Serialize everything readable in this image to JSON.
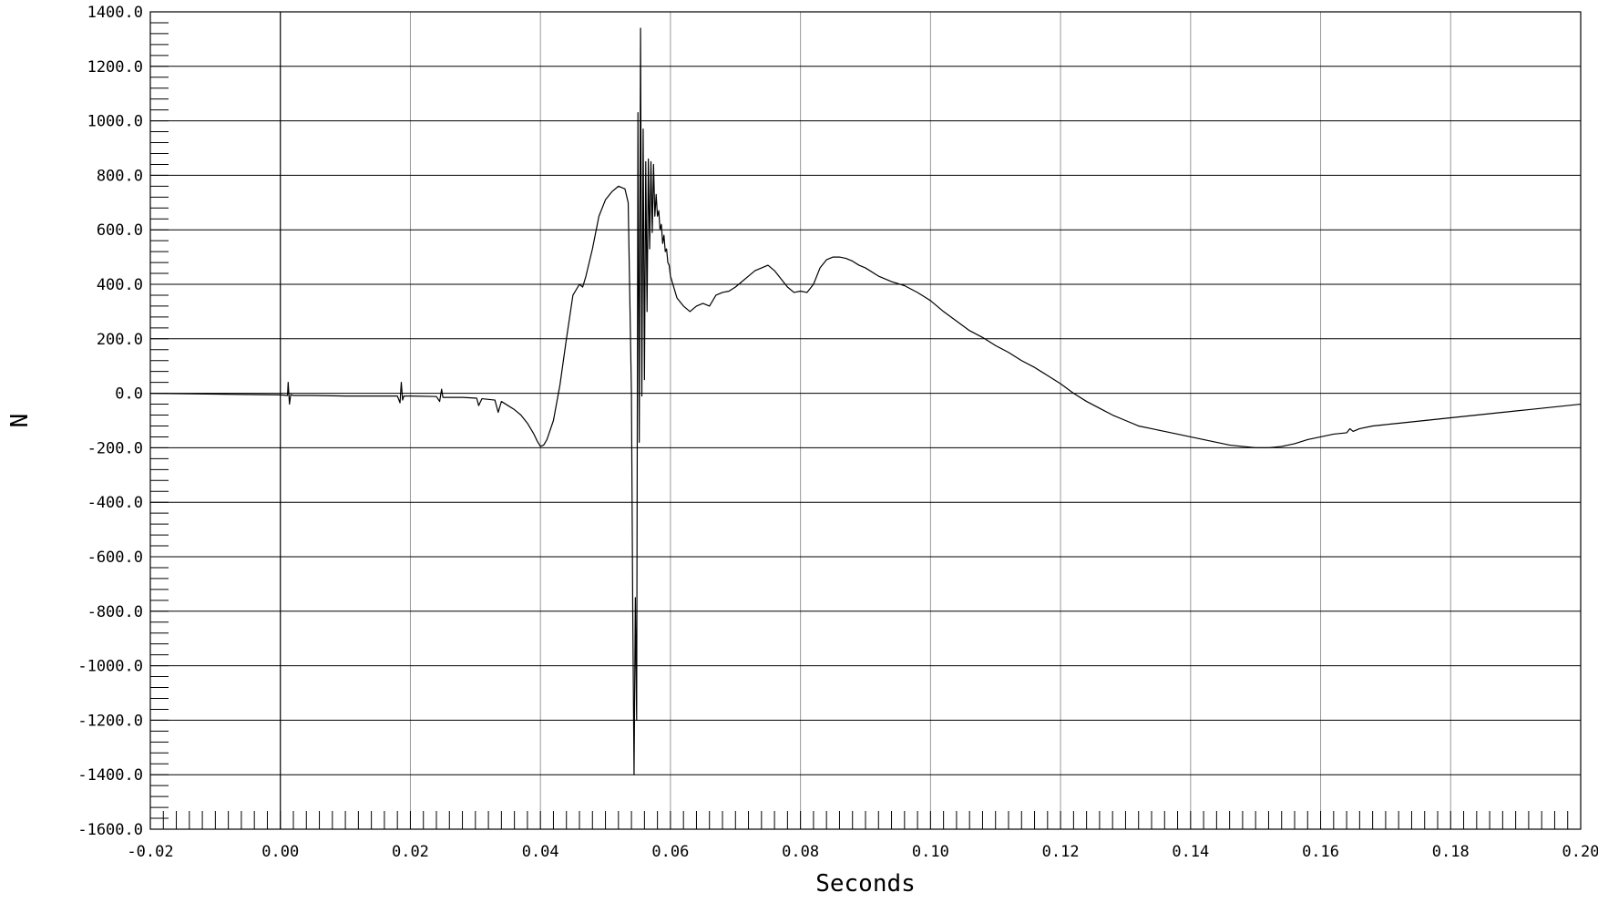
{
  "chart_data": {
    "type": "line",
    "title": "",
    "xlabel": "Seconds",
    "ylabel": "N",
    "xlim": [
      -0.02,
      0.2
    ],
    "ylim": [
      -1600,
      1400
    ],
    "x_ticks": [
      "-0.02",
      "0.00",
      "0.02",
      "0.04",
      "0.06",
      "0.08",
      "0.10",
      "0.12",
      "0.14",
      "0.16",
      "0.18",
      "0.20"
    ],
    "y_ticks": [
      "1400.0",
      "1200.0",
      "1000.0",
      "800.0",
      "600.0",
      "400.0",
      "200.0",
      "0.0",
      "-200.0",
      "-400.0",
      "-600.0",
      "-800.0",
      "-1000.0",
      "-1200.0",
      "-1400.0",
      "-1600.0"
    ],
    "grid": true,
    "legend": "none",
    "colors": {
      "line": "#000000",
      "grid_major": "#000000",
      "grid_minor": "#999999"
    },
    "series": [
      {
        "x": [
          -0.02,
          -0.01,
          0.0,
          0.0011,
          0.0012,
          0.0014,
          0.0016,
          0.002,
          0.005,
          0.01,
          0.015,
          0.018,
          0.0184,
          0.0186,
          0.0188,
          0.019,
          0.02,
          0.024,
          0.0245,
          0.0248,
          0.025,
          0.028,
          0.0302,
          0.0305,
          0.031,
          0.033,
          0.0335,
          0.034,
          0.035,
          0.036,
          0.037,
          0.038,
          0.039,
          0.0395,
          0.04,
          0.0405,
          0.041,
          0.042,
          0.043,
          0.044,
          0.045,
          0.046,
          0.0465,
          0.047,
          0.048,
          0.049,
          0.05,
          0.051,
          0.052,
          0.053,
          0.0535,
          0.054,
          0.0542,
          0.0544,
          0.0546,
          0.0548,
          0.055,
          0.0552,
          0.0554,
          0.0556,
          0.0558,
          0.056,
          0.0562,
          0.0564,
          0.0566,
          0.0568,
          0.057,
          0.0572,
          0.0574,
          0.0576,
          0.0578,
          0.058,
          0.0582,
          0.0584,
          0.0586,
          0.0588,
          0.059,
          0.0592,
          0.0594,
          0.0596,
          0.0598,
          0.06,
          0.061,
          0.062,
          0.063,
          0.064,
          0.065,
          0.066,
          0.067,
          0.068,
          0.069,
          0.07,
          0.071,
          0.072,
          0.073,
          0.074,
          0.075,
          0.076,
          0.077,
          0.078,
          0.079,
          0.08,
          0.081,
          0.082,
          0.083,
          0.084,
          0.085,
          0.086,
          0.087,
          0.088,
          0.089,
          0.09,
          0.092,
          0.094,
          0.096,
          0.098,
          0.1,
          0.102,
          0.104,
          0.106,
          0.108,
          0.11,
          0.112,
          0.114,
          0.116,
          0.118,
          0.12,
          0.122,
          0.124,
          0.126,
          0.128,
          0.13,
          0.132,
          0.134,
          0.136,
          0.138,
          0.14,
          0.142,
          0.144,
          0.146,
          0.148,
          0.15,
          0.152,
          0.154,
          0.156,
          0.158,
          0.16,
          0.162,
          0.164,
          0.1645,
          0.165,
          0.166,
          0.168,
          0.17,
          0.172,
          0.174,
          0.176,
          0.178,
          0.18,
          0.182,
          0.184,
          0.186,
          0.188,
          0.19,
          0.192,
          0.194,
          0.196,
          0.198,
          0.2
        ],
        "y": [
          0,
          -3,
          -6,
          -8,
          40,
          -40,
          -5,
          -8,
          -8,
          -10,
          -10,
          -10,
          -35,
          40,
          -25,
          -10,
          -10,
          -12,
          -30,
          15,
          -15,
          -15,
          -18,
          -45,
          -20,
          -25,
          -70,
          -30,
          -45,
          -60,
          -80,
          -110,
          -150,
          -175,
          -195,
          -190,
          -170,
          -100,
          30,
          200,
          360,
          400,
          390,
          430,
          530,
          650,
          710,
          740,
          760,
          750,
          700,
          0,
          -800,
          -1400,
          -750,
          -1200,
          1030,
          -180,
          1340,
          -10,
          970,
          50,
          850,
          300,
          860,
          530,
          850,
          590,
          840,
          650,
          730,
          650,
          670,
          600,
          620,
          550,
          580,
          520,
          530,
          480,
          470,
          430,
          350,
          320,
          300,
          320,
          330,
          320,
          360,
          370,
          375,
          390,
          410,
          430,
          450,
          460,
          470,
          450,
          420,
          390,
          370,
          375,
          370,
          400,
          460,
          490,
          500,
          500,
          495,
          485,
          470,
          460,
          430,
          410,
          395,
          370,
          340,
          300,
          265,
          230,
          205,
          175,
          150,
          120,
          95,
          65,
          35,
          0,
          -30,
          -55,
          -80,
          -100,
          -120,
          -130,
          -140,
          -150,
          -160,
          -170,
          -180,
          -190,
          -195,
          -200,
          -200,
          -195,
          -185,
          -170,
          -160,
          -150,
          -145,
          -130,
          -140,
          -130,
          -120,
          -115,
          -110,
          -105,
          -100,
          -95,
          -90,
          -85,
          -80,
          -75,
          -70,
          -65,
          -60,
          -55,
          -50,
          -45,
          -40
        ]
      }
    ]
  }
}
